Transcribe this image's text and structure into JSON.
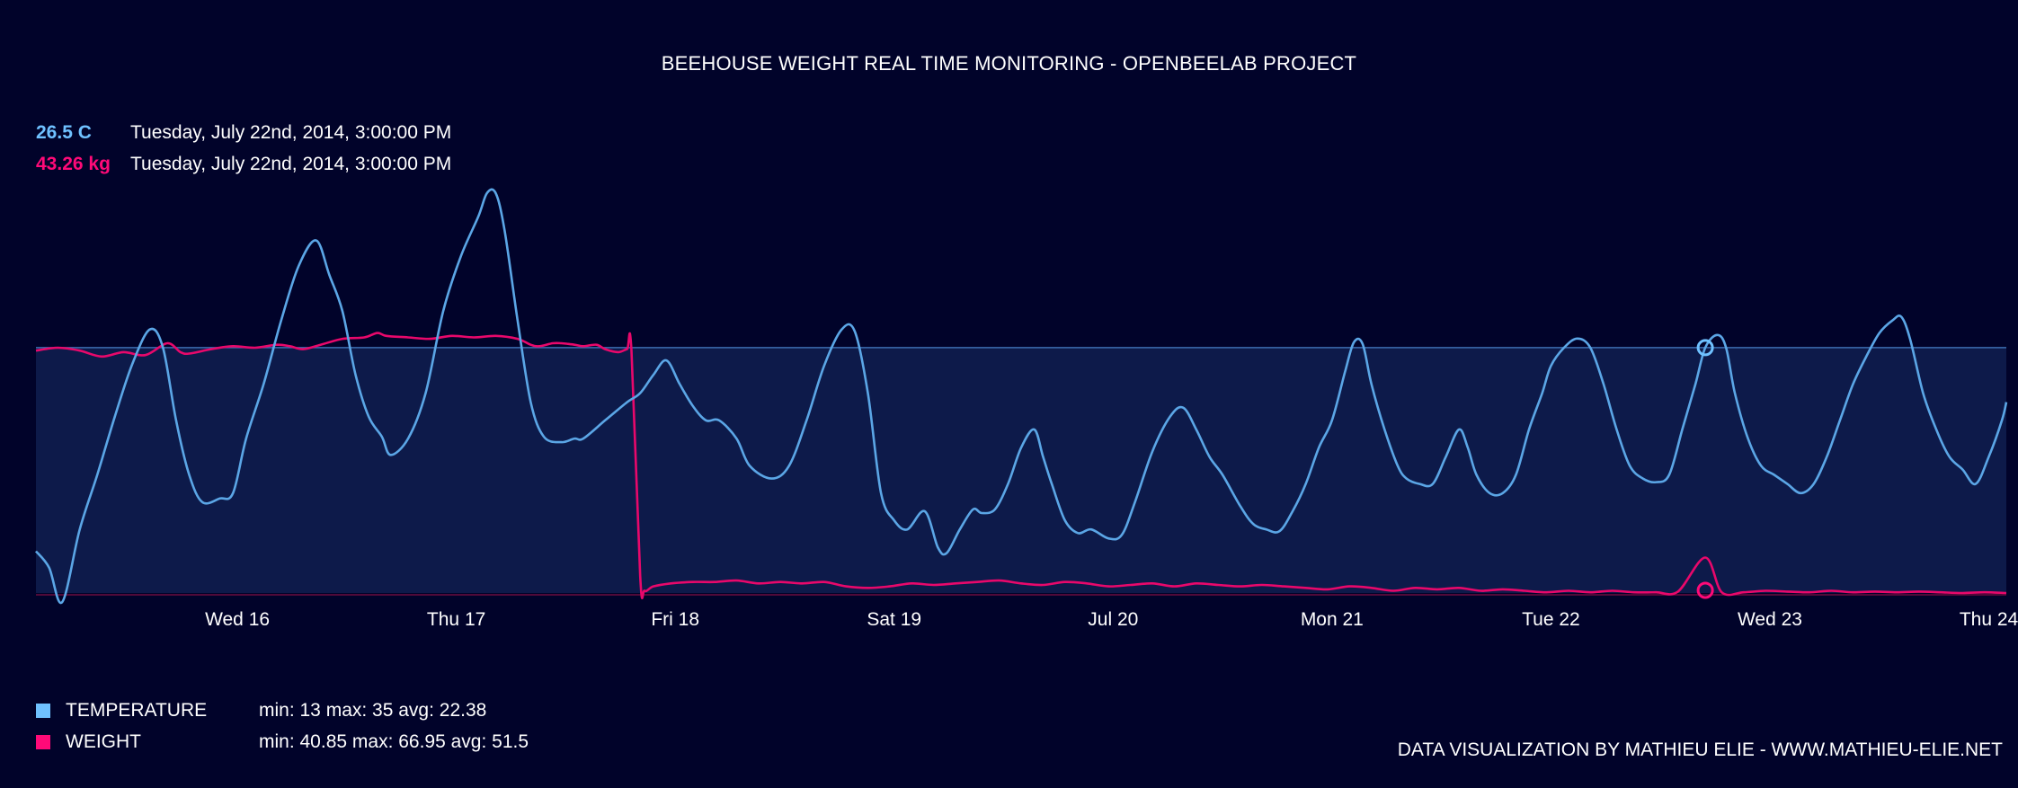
{
  "title": "BEEHOUSE WEIGHT REAL TIME MONITORING - OPENBEELAB PROJECT",
  "readouts": {
    "temperature": {
      "value": "26.5 C",
      "time": "Tuesday, July 22nd, 2014, 3:00:00 PM"
    },
    "weight": {
      "value": "43.26 kg",
      "time": "Tuesday, July 22nd, 2014, 3:00:00 PM"
    }
  },
  "legend": {
    "temperature": {
      "label": "TEMPERATURE",
      "stats": "min: 13 max: 35 avg: 22.38"
    },
    "weight": {
      "label": "WEIGHT",
      "stats": "min: 40.85 max: 66.95 avg: 51.5"
    }
  },
  "credit": "DATA VISUALIZATION BY MATHIEU ELIE - WWW.MATHIEU-ELIE.NET",
  "colors": {
    "background": "#01032a",
    "temperature": "#5ba6e6",
    "weight": "#e8086b",
    "band": "#0d1a4a",
    "band_line": "#3d6db0"
  },
  "chart_data": {
    "type": "line",
    "title": "BEEHOUSE WEIGHT REAL TIME MONITORING - OPENBEELAB PROJECT",
    "x_unit": "days (July 2014)",
    "xlim": [
      15.0,
      24.0
    ],
    "tick_labels": [
      {
        "x": 15.92,
        "label": "Wed 16"
      },
      {
        "x": 16.92,
        "label": "Thu 17"
      },
      {
        "x": 17.92,
        "label": "Fri 18"
      },
      {
        "x": 18.92,
        "label": "Sat 19"
      },
      {
        "x": 19.92,
        "label": "Jul 20"
      },
      {
        "x": 20.92,
        "label": "Mon 21"
      },
      {
        "x": 21.92,
        "label": "Tue 22"
      },
      {
        "x": 22.92,
        "label": "Wed 23"
      },
      {
        "x": 23.92,
        "label": "Thu 24"
      }
    ],
    "band": {
      "series": "TEMPERATURE",
      "from": 13,
      "to": 26.5
    },
    "cursor": {
      "x": 22.625,
      "temperature": 26.5,
      "weight": 43.26
    },
    "series": [
      {
        "name": "TEMPERATURE",
        "ylim": [
          13,
          35
        ],
        "points": [
          [
            15.0,
            15.3
          ],
          [
            15.06,
            14.4
          ],
          [
            15.12,
            12.5
          ],
          [
            15.2,
            16.5
          ],
          [
            15.28,
            19.5
          ],
          [
            15.36,
            22.7
          ],
          [
            15.44,
            25.6
          ],
          [
            15.52,
            27.5
          ],
          [
            15.58,
            26.5
          ],
          [
            15.64,
            22.5
          ],
          [
            15.7,
            19.5
          ],
          [
            15.76,
            18.0
          ],
          [
            15.84,
            18.2
          ],
          [
            15.9,
            18.5
          ],
          [
            15.96,
            21.5
          ],
          [
            16.04,
            24.5
          ],
          [
            16.12,
            28.0
          ],
          [
            16.2,
            31.0
          ],
          [
            16.28,
            32.4
          ],
          [
            16.34,
            30.5
          ],
          [
            16.4,
            28.5
          ],
          [
            16.46,
            25.0
          ],
          [
            16.52,
            22.7
          ],
          [
            16.58,
            21.6
          ],
          [
            16.62,
            20.6
          ],
          [
            16.7,
            21.5
          ],
          [
            16.78,
            24.0
          ],
          [
            16.86,
            28.5
          ],
          [
            16.94,
            31.5
          ],
          [
            17.02,
            33.7
          ],
          [
            17.06,
            35.0
          ],
          [
            17.1,
            35.0
          ],
          [
            17.14,
            33.0
          ],
          [
            17.2,
            28.0
          ],
          [
            17.26,
            23.5
          ],
          [
            17.32,
            21.6
          ],
          [
            17.4,
            21.3
          ],
          [
            17.46,
            21.5
          ],
          [
            17.5,
            21.5
          ],
          [
            17.6,
            22.5
          ],
          [
            17.7,
            23.5
          ],
          [
            17.76,
            24.0
          ],
          [
            17.82,
            25.0
          ],
          [
            17.88,
            25.8
          ],
          [
            17.94,
            24.5
          ],
          [
            18.0,
            23.3
          ],
          [
            18.06,
            22.5
          ],
          [
            18.12,
            22.5
          ],
          [
            18.2,
            21.5
          ],
          [
            18.26,
            20.0
          ],
          [
            18.36,
            19.3
          ],
          [
            18.44,
            20.0
          ],
          [
            18.52,
            22.5
          ],
          [
            18.6,
            25.5
          ],
          [
            18.68,
            27.5
          ],
          [
            18.74,
            27.4
          ],
          [
            18.8,
            24.0
          ],
          [
            18.86,
            18.5
          ],
          [
            18.92,
            17.0
          ],
          [
            18.98,
            16.5
          ],
          [
            19.06,
            17.5
          ],
          [
            19.12,
            15.5
          ],
          [
            19.16,
            15.2
          ],
          [
            19.22,
            16.5
          ],
          [
            19.28,
            17.6
          ],
          [
            19.32,
            17.4
          ],
          [
            19.38,
            17.6
          ],
          [
            19.44,
            19.0
          ],
          [
            19.5,
            21.0
          ],
          [
            19.56,
            22.0
          ],
          [
            19.6,
            20.5
          ],
          [
            19.64,
            19.0
          ],
          [
            19.7,
            17.0
          ],
          [
            19.76,
            16.3
          ],
          [
            19.82,
            16.5
          ],
          [
            19.9,
            16.0
          ],
          [
            19.96,
            16.2
          ],
          [
            20.02,
            18.0
          ],
          [
            20.1,
            20.8
          ],
          [
            20.18,
            22.7
          ],
          [
            20.24,
            23.2
          ],
          [
            20.3,
            22.0
          ],
          [
            20.36,
            20.5
          ],
          [
            20.42,
            19.5
          ],
          [
            20.5,
            17.8
          ],
          [
            20.56,
            16.8
          ],
          [
            20.62,
            16.5
          ],
          [
            20.68,
            16.4
          ],
          [
            20.74,
            17.5
          ],
          [
            20.8,
            19.0
          ],
          [
            20.86,
            21.0
          ],
          [
            20.92,
            22.5
          ],
          [
            20.98,
            25.2
          ],
          [
            21.02,
            26.8
          ],
          [
            21.06,
            26.7
          ],
          [
            21.1,
            24.5
          ],
          [
            21.16,
            22.0
          ],
          [
            21.22,
            20.0
          ],
          [
            21.26,
            19.3
          ],
          [
            21.32,
            19.0
          ],
          [
            21.38,
            19.0
          ],
          [
            21.44,
            20.5
          ],
          [
            21.5,
            22.0
          ],
          [
            21.54,
            21.0
          ],
          [
            21.58,
            19.5
          ],
          [
            21.64,
            18.5
          ],
          [
            21.7,
            18.5
          ],
          [
            21.76,
            19.5
          ],
          [
            21.82,
            22.0
          ],
          [
            21.88,
            24.0
          ],
          [
            21.92,
            25.5
          ],
          [
            21.98,
            26.5
          ],
          [
            22.04,
            27.0
          ],
          [
            22.1,
            26.5
          ],
          [
            22.16,
            24.5
          ],
          [
            22.22,
            22.0
          ],
          [
            22.28,
            20.0
          ],
          [
            22.34,
            19.3
          ],
          [
            22.4,
            19.1
          ],
          [
            22.46,
            19.5
          ],
          [
            22.52,
            22.0
          ],
          [
            22.58,
            24.5
          ],
          [
            22.625,
            26.5
          ],
          [
            22.68,
            27.2
          ],
          [
            22.72,
            26.5
          ],
          [
            22.76,
            24.0
          ],
          [
            22.82,
            21.5
          ],
          [
            22.88,
            20.0
          ],
          [
            22.94,
            19.5
          ],
          [
            23.0,
            19.0
          ],
          [
            23.06,
            18.5
          ],
          [
            23.12,
            19.0
          ],
          [
            23.18,
            20.5
          ],
          [
            23.24,
            22.5
          ],
          [
            23.3,
            24.5
          ],
          [
            23.36,
            26.0
          ],
          [
            23.42,
            27.3
          ],
          [
            23.48,
            28.0
          ],
          [
            23.52,
            28.2
          ],
          [
            23.56,
            27.0
          ],
          [
            23.62,
            24.0
          ],
          [
            23.68,
            22.0
          ],
          [
            23.74,
            20.5
          ],
          [
            23.8,
            19.8
          ],
          [
            23.86,
            19.0
          ],
          [
            23.92,
            20.5
          ],
          [
            23.98,
            22.5
          ],
          [
            24.0,
            23.5
          ]
        ]
      },
      {
        "name": "WEIGHT",
        "ylim": [
          40.85,
          66.95
        ],
        "points": [
          [
            15.0,
            57.3
          ],
          [
            15.1,
            57.5
          ],
          [
            15.2,
            57.3
          ],
          [
            15.3,
            56.9
          ],
          [
            15.4,
            57.2
          ],
          [
            15.5,
            57.0
          ],
          [
            15.6,
            57.8
          ],
          [
            15.66,
            57.2
          ],
          [
            15.7,
            57.1
          ],
          [
            15.8,
            57.4
          ],
          [
            15.9,
            57.6
          ],
          [
            16.0,
            57.5
          ],
          [
            16.1,
            57.7
          ],
          [
            16.16,
            57.6
          ],
          [
            16.22,
            57.4
          ],
          [
            16.3,
            57.7
          ],
          [
            16.4,
            58.1
          ],
          [
            16.5,
            58.2
          ],
          [
            16.56,
            58.5
          ],
          [
            16.6,
            58.3
          ],
          [
            16.7,
            58.2
          ],
          [
            16.8,
            58.1
          ],
          [
            16.9,
            58.3
          ],
          [
            17.0,
            58.2
          ],
          [
            17.1,
            58.3
          ],
          [
            17.2,
            58.1
          ],
          [
            17.26,
            57.7
          ],
          [
            17.3,
            57.6
          ],
          [
            17.36,
            57.8
          ],
          [
            17.4,
            57.8
          ],
          [
            17.46,
            57.7
          ],
          [
            17.5,
            57.6
          ],
          [
            17.56,
            57.7
          ],
          [
            17.6,
            57.4
          ],
          [
            17.66,
            57.2
          ],
          [
            17.7,
            57.4
          ],
          [
            17.72,
            57.3
          ],
          [
            17.76,
            42.0
          ],
          [
            17.78,
            41.0
          ],
          [
            17.82,
            41.3
          ],
          [
            17.9,
            41.5
          ],
          [
            18.0,
            41.6
          ],
          [
            18.1,
            41.6
          ],
          [
            18.2,
            41.7
          ],
          [
            18.3,
            41.5
          ],
          [
            18.4,
            41.6
          ],
          [
            18.5,
            41.5
          ],
          [
            18.6,
            41.6
          ],
          [
            18.7,
            41.3
          ],
          [
            18.8,
            41.2
          ],
          [
            18.9,
            41.3
          ],
          [
            19.0,
            41.5
          ],
          [
            19.1,
            41.4
          ],
          [
            19.2,
            41.5
          ],
          [
            19.3,
            41.6
          ],
          [
            19.4,
            41.7
          ],
          [
            19.5,
            41.5
          ],
          [
            19.6,
            41.4
          ],
          [
            19.7,
            41.6
          ],
          [
            19.8,
            41.5
          ],
          [
            19.9,
            41.3
          ],
          [
            20.0,
            41.4
          ],
          [
            20.1,
            41.5
          ],
          [
            20.2,
            41.3
          ],
          [
            20.3,
            41.5
          ],
          [
            20.4,
            41.4
          ],
          [
            20.5,
            41.3
          ],
          [
            20.6,
            41.4
          ],
          [
            20.7,
            41.3
          ],
          [
            20.8,
            41.2
          ],
          [
            20.9,
            41.1
          ],
          [
            21.0,
            41.3
          ],
          [
            21.1,
            41.2
          ],
          [
            21.2,
            41.0
          ],
          [
            21.3,
            41.2
          ],
          [
            21.4,
            41.1
          ],
          [
            21.5,
            41.2
          ],
          [
            21.6,
            41.0
          ],
          [
            21.7,
            41.1
          ],
          [
            21.8,
            41.0
          ],
          [
            21.9,
            40.9
          ],
          [
            22.0,
            41.0
          ],
          [
            22.1,
            40.9
          ],
          [
            22.2,
            41.0
          ],
          [
            22.3,
            40.9
          ],
          [
            22.4,
            40.9
          ],
          [
            22.5,
            40.95
          ],
          [
            22.625,
            43.26
          ],
          [
            22.7,
            40.9
          ],
          [
            22.8,
            40.9
          ],
          [
            22.9,
            41.0
          ],
          [
            23.0,
            40.95
          ],
          [
            23.1,
            40.9
          ],
          [
            23.2,
            41.0
          ],
          [
            23.3,
            40.9
          ],
          [
            23.4,
            40.95
          ],
          [
            23.5,
            40.9
          ],
          [
            23.6,
            40.95
          ],
          [
            23.7,
            40.9
          ],
          [
            23.8,
            40.85
          ],
          [
            23.9,
            40.9
          ],
          [
            24.0,
            40.85
          ]
        ]
      }
    ]
  }
}
